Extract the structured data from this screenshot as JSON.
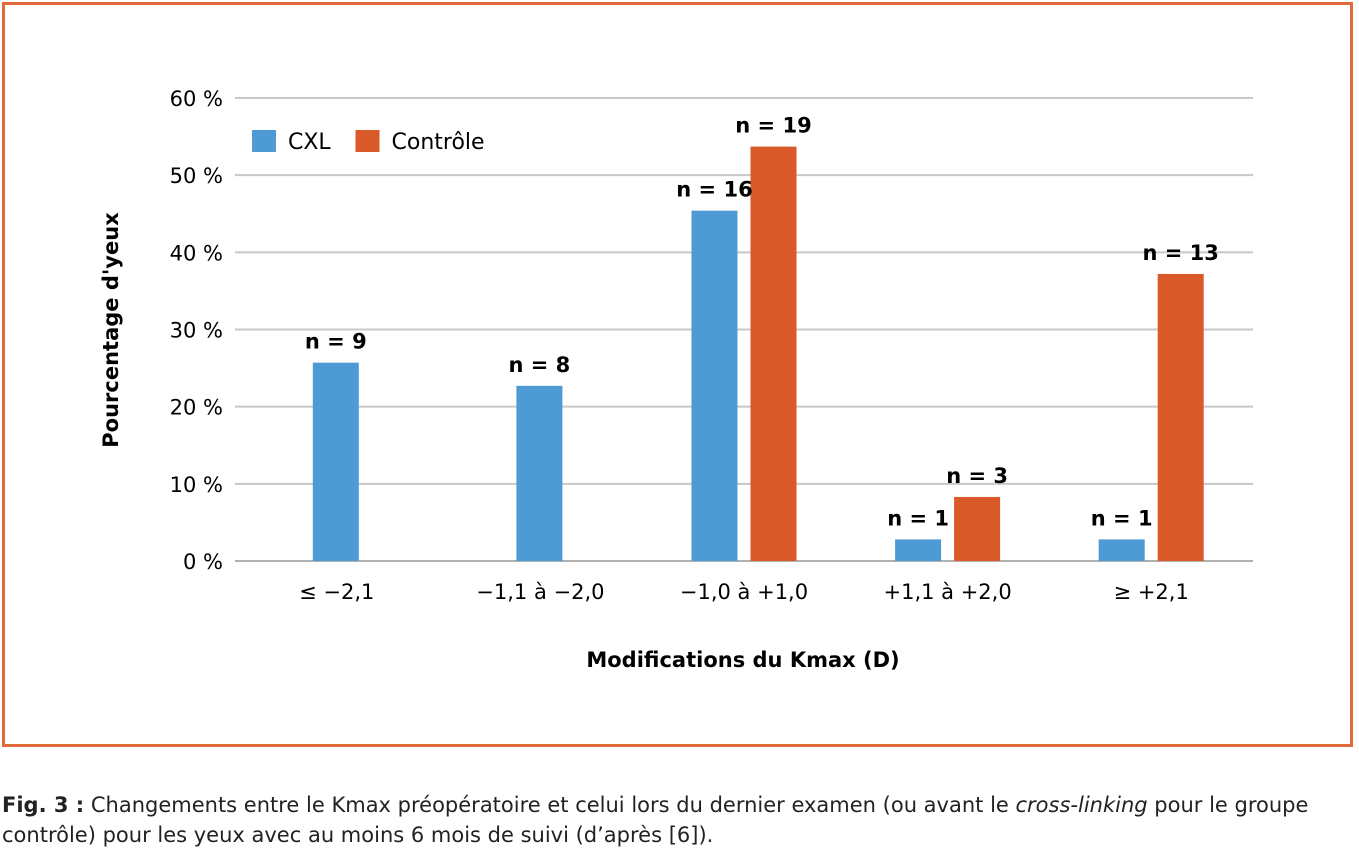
{
  "chart_data": {
    "type": "bar",
    "categories": [
      "≤ −2,1",
      "−1,1 à −2,0",
      "−1,0 à +1,0",
      "+1,1 à +2,0",
      "≥ +2,1"
    ],
    "series": [
      {
        "name": "CXL",
        "color": "#4e9ad4",
        "values": [
          25.7,
          22.7,
          45.4,
          2.8,
          2.8
        ],
        "labels": [
          "n = 9",
          "n = 8",
          "n = 16",
          "n = 1",
          "n = 1"
        ]
      },
      {
        "name": "Contrôle",
        "color": "#d95a28",
        "values": [
          null,
          null,
          53.7,
          8.3,
          37.2
        ],
        "labels": [
          "",
          "",
          "n = 19",
          "n = 3",
          "n = 13"
        ]
      }
    ],
    "xlabel": "Modifications du Kmax (D)",
    "ylabel": "Pourcentage d'yeux",
    "ylim": [
      0,
      60
    ],
    "yticks": [
      "0 %",
      "10 %",
      "20 %",
      "30 %",
      "40 %",
      "50 %",
      "60 %"
    ],
    "grid": true,
    "legend_position": "top-left"
  },
  "caption": {
    "label": "Fig. 3 :",
    "text_before": " Changements entre le Kmax préopératoire et celui lors du dernier examen (ou avant le ",
    "italic": "cross-linking",
    "text_after": " pour le groupe contrôle) pour les yeux avec au moins 6 mois de suivi (d’après [6])."
  },
  "colors": {
    "frame": "#e06a3a",
    "grid": "#c8c8c8"
  }
}
